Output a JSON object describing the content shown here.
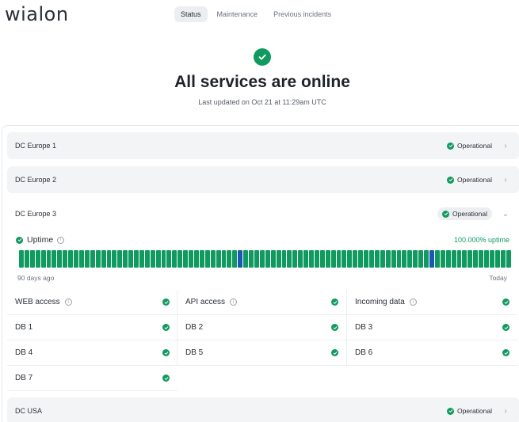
{
  "header": {
    "logo": "wialon",
    "tabs": [
      {
        "label": "Status",
        "active": true
      },
      {
        "label": "Maintenance",
        "active": false
      },
      {
        "label": "Previous incidents",
        "active": false
      }
    ]
  },
  "hero": {
    "icon": "check-circle-icon",
    "title": "All services are online",
    "subtitle": "Last updated on Oct 21 at 11:29am UTC"
  },
  "colors": {
    "operational": "#119a5f",
    "incident_bar": "#1e56b8"
  },
  "datacenters": [
    {
      "name": "DC Europe 1",
      "status": "Operational",
      "expanded": false
    },
    {
      "name": "DC Europe 2",
      "status": "Operational",
      "expanded": false
    },
    {
      "name": "DC Europe 3",
      "status": "Operational",
      "expanded": true
    },
    {
      "name": "DC USA",
      "status": "Operational",
      "expanded": false
    }
  ],
  "uptime": {
    "label": "Uptime",
    "percent": "100.000% uptime",
    "start_label": "90 days ago",
    "end_label": "Today",
    "days": 90,
    "blue_days": [
      40,
      75
    ]
  },
  "services": {
    "columns": [
      [
        {
          "name": "WEB access",
          "info": true
        },
        {
          "name": "DB 1"
        },
        {
          "name": "DB 4"
        },
        {
          "name": "DB 7"
        }
      ],
      [
        {
          "name": "API access",
          "info": true
        },
        {
          "name": "DB 2"
        },
        {
          "name": "DB 5"
        }
      ],
      [
        {
          "name": "Incoming data",
          "info": true
        },
        {
          "name": "DB 3"
        },
        {
          "name": "DB 6"
        }
      ]
    ]
  }
}
